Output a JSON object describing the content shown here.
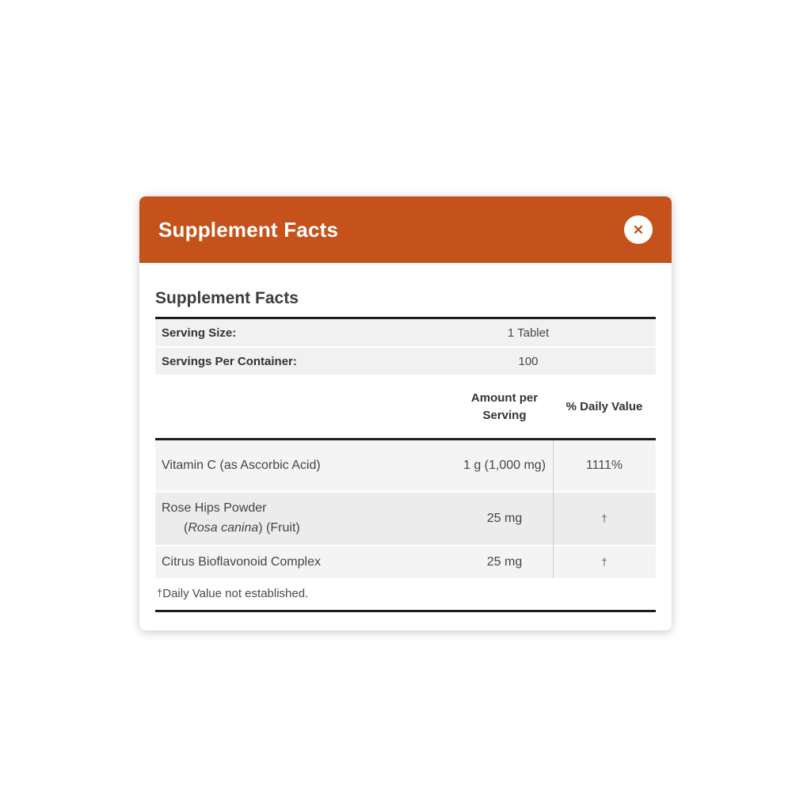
{
  "colors": {
    "accent_orange": "#C4521A",
    "rule_black": "#1c1c1c",
    "row_gray": "#f4f4f4",
    "row_gray_alt": "#ececec"
  },
  "modal": {
    "header": {
      "title": "Supplement Facts",
      "close_icon": "✕"
    },
    "body": {
      "heading": "Supplement Facts",
      "serving_info": [
        {
          "label": "Serving Size:",
          "value": "1 Tablet"
        },
        {
          "label": "Servings Per Container:",
          "value": "100"
        }
      ],
      "columns": {
        "amount": "Amount per Serving",
        "daily_value": "% Daily Value"
      },
      "nutrients": [
        {
          "name": "Vitamin C (as Ascorbic Acid)",
          "amount": "1 g (1,000 mg)",
          "daily_value": "1111%"
        },
        {
          "name_line1": "Rose Hips Powder",
          "name_line2_prefix": "(",
          "name_line2_italic": "Rosa canina",
          "name_line2_suffix": ") (Fruit)",
          "amount": "25 mg",
          "daily_value": "†"
        },
        {
          "name": "Citrus Bioflavonoid Complex",
          "amount": "25 mg",
          "daily_value": "†"
        }
      ],
      "footnote": {
        "dagger": "†",
        "text": "Daily Value not established."
      }
    }
  }
}
